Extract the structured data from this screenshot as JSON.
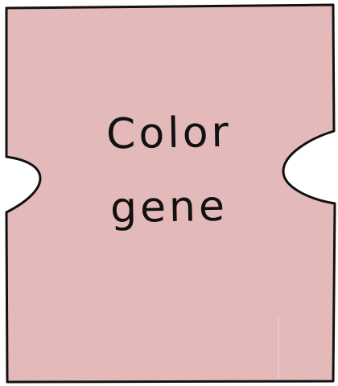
{
  "label": {
    "line1": "Color",
    "line2": "gene"
  },
  "colors": {
    "fill": "#e4b9b9",
    "stroke": "#111111",
    "background": "#ffffff"
  }
}
